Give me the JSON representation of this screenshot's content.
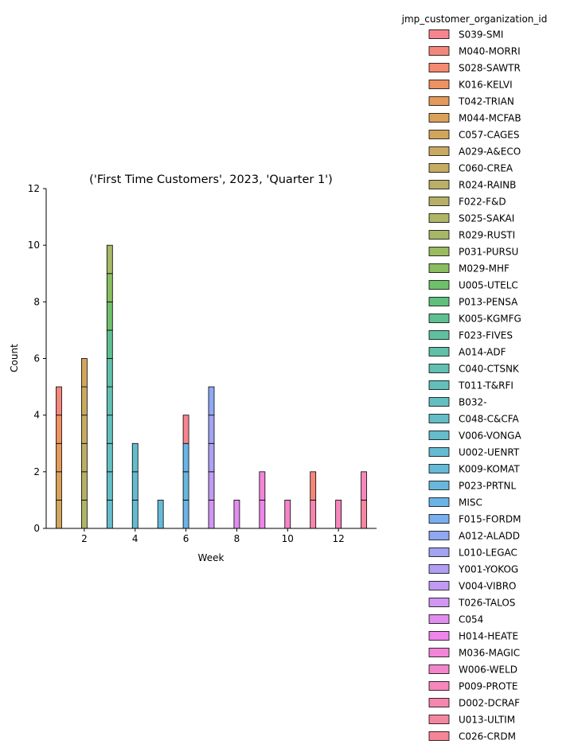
{
  "chart_data": {
    "type": "bar",
    "stacked": true,
    "title": "('First Time Customers', 2023, 'Quarter 1')",
    "xlabel": "Week",
    "ylabel": "Count",
    "xlim": [
      0.5,
      13.5
    ],
    "ylim": [
      0,
      12
    ],
    "xticks": [
      2,
      4,
      6,
      8,
      10,
      12
    ],
    "yticks": [
      0,
      2,
      4,
      6,
      8,
      10,
      12
    ],
    "grid": false,
    "legend": {
      "title": "jmp_customer_organization_id",
      "placement": "right",
      "entries": [
        {
          "label": "S039-SMI",
          "color": "#f6858f"
        },
        {
          "label": "M040-MORRI",
          "color": "#f5877a"
        },
        {
          "label": "S028-SAWTR",
          "color": "#f48a70"
        },
        {
          "label": "K016-KELVI",
          "color": "#ef9261"
        },
        {
          "label": "T042-TRIAN",
          "color": "#e49a59"
        },
        {
          "label": "M044-MCFAB",
          "color": "#daa15a"
        },
        {
          "label": "C057-CAGES",
          "color": "#d2a55d"
        },
        {
          "label": "A029-A&ECO",
          "color": "#caa960"
        },
        {
          "label": "C060-CREA",
          "color": "#c4ac63"
        },
        {
          "label": "R024-RAINB",
          "color": "#bcae66"
        },
        {
          "label": "F022-F&D",
          "color": "#b6b067"
        },
        {
          "label": "S025-SAKAI",
          "color": "#afb567"
        },
        {
          "label": "R029-RUSTI",
          "color": "#a6b865"
        },
        {
          "label": "P031-PURSU",
          "color": "#9abb5f"
        },
        {
          "label": "M029-MHF",
          "color": "#89bd5f"
        },
        {
          "label": "U005-UTELC",
          "color": "#6fc06a"
        },
        {
          "label": "P013-PENSA",
          "color": "#5fc07e"
        },
        {
          "label": "K005-KGMFG",
          "color": "#5ec091"
        },
        {
          "label": "F023-FIVES",
          "color": "#5fc09f"
        },
        {
          "label": "A014-ADF",
          "color": "#60c0a8"
        },
        {
          "label": "C040-CTSNK",
          "color": "#61c0b2"
        },
        {
          "label": "T011-T&RFI",
          "color": "#62c0bb"
        },
        {
          "label": "B032-",
          "color": "#63bfc2"
        },
        {
          "label": "C048-C&CFA",
          "color": "#63bec8"
        },
        {
          "label": "V006-VONGA",
          "color": "#64bdcc"
        },
        {
          "label": "U002-UENRT",
          "color": "#65bcd2"
        },
        {
          "label": "K009-KOMAT",
          "color": "#66bad7"
        },
        {
          "label": "P023-PRTNL",
          "color": "#67b8dc"
        },
        {
          "label": "MISC",
          "color": "#6ab4e8"
        },
        {
          "label": "F015-FORDM",
          "color": "#78afef"
        },
        {
          "label": "A012-ALADD",
          "color": "#90a8f2"
        },
        {
          "label": "L010-LEGAC",
          "color": "#a3a3f3"
        },
        {
          "label": "Y001-YOKOG",
          "color": "#b19ff3"
        },
        {
          "label": "V004-VIBRO",
          "color": "#c19bf3"
        },
        {
          "label": "T026-TALOS",
          "color": "#d196f2"
        },
        {
          "label": "C054",
          "color": "#e18df0"
        },
        {
          "label": "H014-HEATE",
          "color": "#ee85ea"
        },
        {
          "label": "M036-MAGIC",
          "color": "#f385d9"
        },
        {
          "label": "W006-WELD",
          "color": "#f585ca"
        },
        {
          "label": "P009-PROTE",
          "color": "#f686bc"
        },
        {
          "label": "D002-DCRAF",
          "color": "#f686ae"
        },
        {
          "label": "U013-ULTIM",
          "color": "#f6869f"
        },
        {
          "label": "C026-CRDM",
          "color": "#f68597"
        }
      ]
    },
    "bars": [
      {
        "week": 1,
        "segments": [
          {
            "series": "C057-CAGES",
            "count": 1
          },
          {
            "series": "M044-MCFAB",
            "count": 1
          },
          {
            "series": "T042-TRIAN",
            "count": 1
          },
          {
            "series": "K016-KELVI",
            "count": 1
          },
          {
            "series": "M040-MORRI",
            "count": 1
          }
        ]
      },
      {
        "week": 2,
        "segments": [
          {
            "series": "S025-SAKAI",
            "count": 1
          },
          {
            "series": "F022-F&D",
            "count": 1
          },
          {
            "series": "R024-RAINB",
            "count": 1
          },
          {
            "series": "C060-CREA",
            "count": 1
          },
          {
            "series": "A029-A&ECO",
            "count": 1
          },
          {
            "series": "C057-CAGES",
            "count": 1
          }
        ]
      },
      {
        "week": 3,
        "segments": [
          {
            "series": "V006-VONGA",
            "count": 1
          },
          {
            "series": "C048-C&CFA",
            "count": 1
          },
          {
            "series": "B032-",
            "count": 1
          },
          {
            "series": "T011-T&RFI",
            "count": 1
          },
          {
            "series": "C040-CTSNK",
            "count": 1
          },
          {
            "series": "A014-ADF",
            "count": 1
          },
          {
            "series": "K005-KGMFG",
            "count": 1
          },
          {
            "series": "U005-UTELC",
            "count": 1
          },
          {
            "series": "M029-MHF",
            "count": 1
          },
          {
            "series": "R029-RUSTI",
            "count": 1
          }
        ]
      },
      {
        "week": 4,
        "segments": [
          {
            "series": "U002-UENRT",
            "count": 1
          },
          {
            "series": "U002-UENRT",
            "count": 1
          },
          {
            "series": "V006-VONGA",
            "count": 1
          }
        ]
      },
      {
        "week": 5,
        "segments": [
          {
            "series": "K009-KOMAT",
            "count": 1
          }
        ]
      },
      {
        "week": 6,
        "segments": [
          {
            "series": "MISC",
            "count": 1
          },
          {
            "series": "P023-PRTNL",
            "count": 1
          },
          {
            "series": "MISC",
            "count": 1
          },
          {
            "series": "S039-SMI",
            "count": 1
          }
        ]
      },
      {
        "week": 7,
        "segments": [
          {
            "series": "T026-TALOS",
            "count": 1
          },
          {
            "series": "V004-VIBRO",
            "count": 1
          },
          {
            "series": "Y001-YOKOG",
            "count": 1
          },
          {
            "series": "L010-LEGAC",
            "count": 1
          },
          {
            "series": "A012-ALADD",
            "count": 1
          }
        ]
      },
      {
        "week": 8,
        "segments": [
          {
            "series": "C054",
            "count": 1
          }
        ]
      },
      {
        "week": 9,
        "segments": [
          {
            "series": "H014-HEATE",
            "count": 1
          },
          {
            "series": "M036-MAGIC",
            "count": 1
          }
        ]
      },
      {
        "week": 10,
        "segments": [
          {
            "series": "W006-WELD",
            "count": 1
          }
        ]
      },
      {
        "week": 11,
        "segments": [
          {
            "series": "D002-DCRAF",
            "count": 1
          },
          {
            "series": "M040-MORRI",
            "count": 1
          }
        ]
      },
      {
        "week": 12,
        "segments": [
          {
            "series": "P009-PROTE",
            "count": 1
          }
        ]
      },
      {
        "week": 13,
        "segments": [
          {
            "series": "U013-ULTIM",
            "count": 1
          },
          {
            "series": "P009-PROTE",
            "count": 1
          }
        ]
      }
    ]
  }
}
